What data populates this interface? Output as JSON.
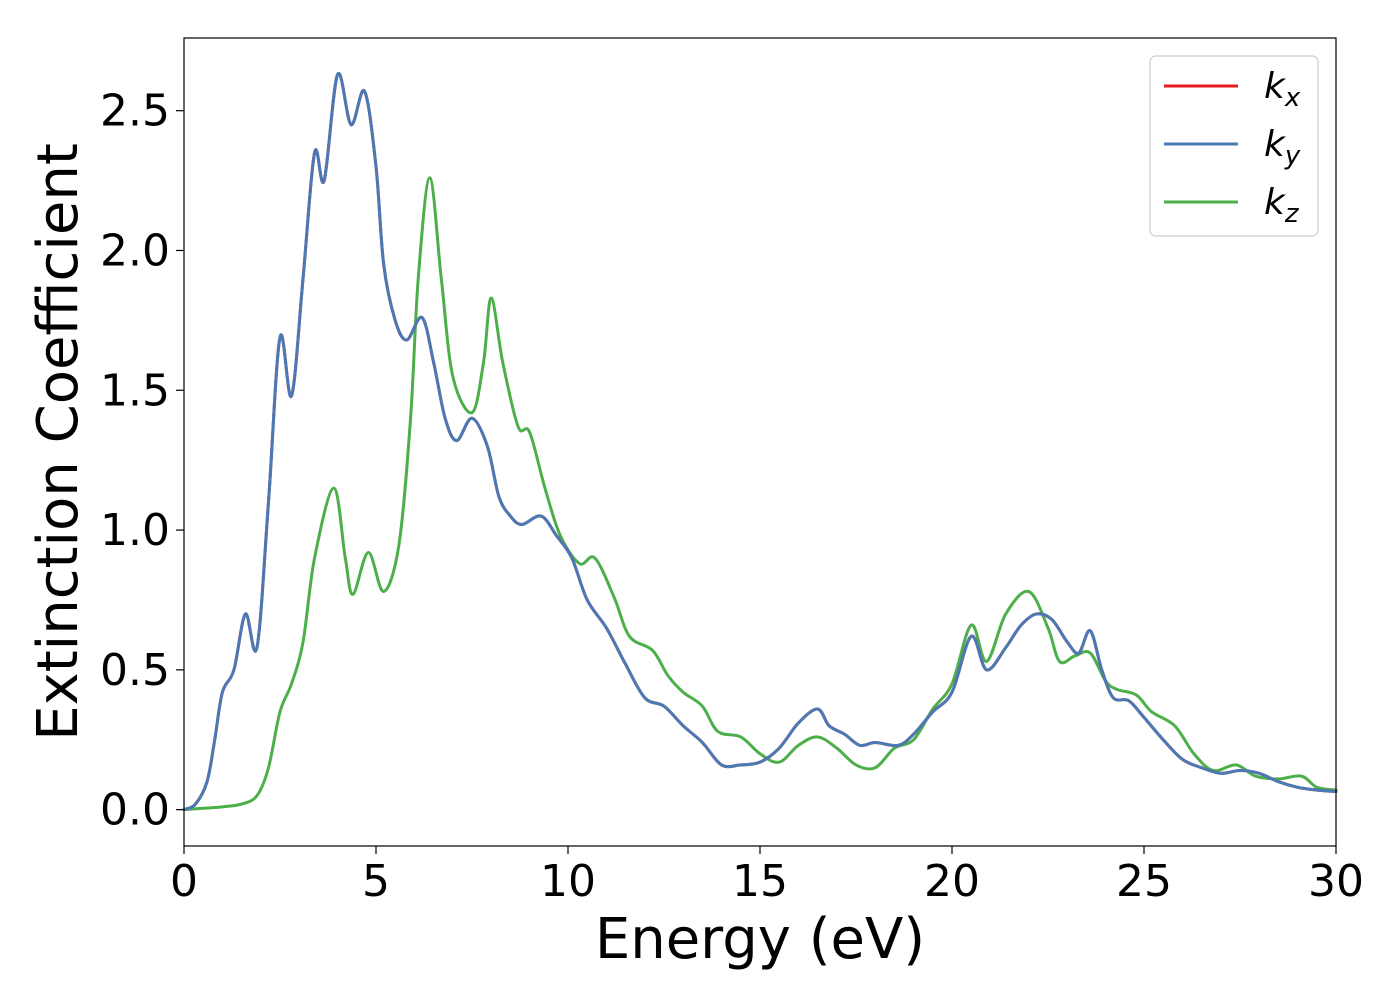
{
  "chart_data": {
    "type": "line",
    "xlabel": "Energy (eV)",
    "ylabel": "Extinction Coefficient",
    "xlim": [
      0,
      30
    ],
    "ylim": [
      -0.13,
      2.76
    ],
    "xticks": [
      0,
      5,
      10,
      15,
      20,
      25,
      30
    ],
    "xtick_labels": [
      "0",
      "5",
      "10",
      "15",
      "20",
      "25",
      "30"
    ],
    "yticks": [
      0.0,
      0.5,
      1.0,
      1.5,
      2.0,
      2.5
    ],
    "ytick_labels": [
      "0.0",
      "0.5",
      "1.0",
      "1.5",
      "2.0",
      "2.5"
    ],
    "grid": false,
    "legend_position": "top-right",
    "series": [
      {
        "name": "k_x",
        "legend_base": "k",
        "legend_sub": "x",
        "color": "#e41a1c",
        "points": [
          [
            0,
            0
          ],
          [
            0.3,
            0.02
          ],
          [
            0.6,
            0.1
          ],
          [
            0.8,
            0.25
          ],
          [
            1.0,
            0.42
          ],
          [
            1.3,
            0.5
          ],
          [
            1.6,
            0.7
          ],
          [
            1.9,
            0.58
          ],
          [
            2.2,
            1.1
          ],
          [
            2.5,
            1.69
          ],
          [
            2.8,
            1.48
          ],
          [
            3.1,
            1.9
          ],
          [
            3.4,
            2.35
          ],
          [
            3.65,
            2.25
          ],
          [
            4.0,
            2.63
          ],
          [
            4.35,
            2.45
          ],
          [
            4.7,
            2.57
          ],
          [
            5.0,
            2.3
          ],
          [
            5.2,
            1.95
          ],
          [
            5.5,
            1.75
          ],
          [
            5.8,
            1.68
          ],
          [
            6.2,
            1.76
          ],
          [
            6.5,
            1.6
          ],
          [
            6.8,
            1.4
          ],
          [
            7.1,
            1.32
          ],
          [
            7.5,
            1.4
          ],
          [
            7.9,
            1.3
          ],
          [
            8.2,
            1.12
          ],
          [
            8.5,
            1.05
          ],
          [
            8.8,
            1.02
          ],
          [
            9.3,
            1.05
          ],
          [
            9.7,
            0.98
          ],
          [
            10.1,
            0.9
          ],
          [
            10.5,
            0.75
          ],
          [
            11.0,
            0.65
          ],
          [
            11.5,
            0.52
          ],
          [
            12.0,
            0.4
          ],
          [
            12.5,
            0.37
          ],
          [
            13.0,
            0.3
          ],
          [
            13.5,
            0.24
          ],
          [
            14.0,
            0.16
          ],
          [
            14.5,
            0.16
          ],
          [
            15.0,
            0.17
          ],
          [
            15.5,
            0.22
          ],
          [
            16.0,
            0.31
          ],
          [
            16.5,
            0.36
          ],
          [
            16.8,
            0.3
          ],
          [
            17.2,
            0.27
          ],
          [
            17.6,
            0.23
          ],
          [
            18.0,
            0.24
          ],
          [
            18.6,
            0.23
          ],
          [
            19.0,
            0.27
          ],
          [
            19.5,
            0.35
          ],
          [
            20.0,
            0.42
          ],
          [
            20.5,
            0.62
          ],
          [
            20.9,
            0.5
          ],
          [
            21.4,
            0.58
          ],
          [
            21.8,
            0.66
          ],
          [
            22.2,
            0.7
          ],
          [
            22.6,
            0.68
          ],
          [
            23.0,
            0.6
          ],
          [
            23.3,
            0.56
          ],
          [
            23.6,
            0.64
          ],
          [
            23.9,
            0.5
          ],
          [
            24.2,
            0.4
          ],
          [
            24.6,
            0.39
          ],
          [
            25.0,
            0.33
          ],
          [
            25.5,
            0.25
          ],
          [
            26.0,
            0.18
          ],
          [
            26.5,
            0.15
          ],
          [
            27.0,
            0.13
          ],
          [
            27.5,
            0.14
          ],
          [
            28.0,
            0.13
          ],
          [
            28.5,
            0.1
          ],
          [
            29.0,
            0.08
          ],
          [
            29.5,
            0.07
          ],
          [
            30,
            0.065
          ]
        ]
      },
      {
        "name": "k_y",
        "legend_base": "k",
        "legend_sub": "y",
        "color": "#4a7ab5",
        "points": [
          [
            0,
            0
          ],
          [
            0.3,
            0.02
          ],
          [
            0.6,
            0.1
          ],
          [
            0.8,
            0.25
          ],
          [
            1.0,
            0.42
          ],
          [
            1.3,
            0.5
          ],
          [
            1.6,
            0.7
          ],
          [
            1.9,
            0.58
          ],
          [
            2.2,
            1.1
          ],
          [
            2.5,
            1.69
          ],
          [
            2.8,
            1.48
          ],
          [
            3.1,
            1.9
          ],
          [
            3.4,
            2.35
          ],
          [
            3.65,
            2.25
          ],
          [
            4.0,
            2.63
          ],
          [
            4.35,
            2.45
          ],
          [
            4.7,
            2.57
          ],
          [
            5.0,
            2.3
          ],
          [
            5.2,
            1.95
          ],
          [
            5.5,
            1.75
          ],
          [
            5.8,
            1.68
          ],
          [
            6.2,
            1.76
          ],
          [
            6.5,
            1.6
          ],
          [
            6.8,
            1.4
          ],
          [
            7.1,
            1.32
          ],
          [
            7.5,
            1.4
          ],
          [
            7.9,
            1.3
          ],
          [
            8.2,
            1.12
          ],
          [
            8.5,
            1.05
          ],
          [
            8.8,
            1.02
          ],
          [
            9.3,
            1.05
          ],
          [
            9.7,
            0.98
          ],
          [
            10.1,
            0.9
          ],
          [
            10.5,
            0.75
          ],
          [
            11.0,
            0.65
          ],
          [
            11.5,
            0.52
          ],
          [
            12.0,
            0.4
          ],
          [
            12.5,
            0.37
          ],
          [
            13.0,
            0.3
          ],
          [
            13.5,
            0.24
          ],
          [
            14.0,
            0.16
          ],
          [
            14.5,
            0.16
          ],
          [
            15.0,
            0.17
          ],
          [
            15.5,
            0.22
          ],
          [
            16.0,
            0.31
          ],
          [
            16.5,
            0.36
          ],
          [
            16.8,
            0.3
          ],
          [
            17.2,
            0.27
          ],
          [
            17.6,
            0.23
          ],
          [
            18.0,
            0.24
          ],
          [
            18.6,
            0.23
          ],
          [
            19.0,
            0.27
          ],
          [
            19.5,
            0.35
          ],
          [
            20.0,
            0.42
          ],
          [
            20.5,
            0.62
          ],
          [
            20.9,
            0.5
          ],
          [
            21.4,
            0.58
          ],
          [
            21.8,
            0.66
          ],
          [
            22.2,
            0.7
          ],
          [
            22.6,
            0.68
          ],
          [
            23.0,
            0.6
          ],
          [
            23.3,
            0.56
          ],
          [
            23.6,
            0.64
          ],
          [
            23.9,
            0.5
          ],
          [
            24.2,
            0.4
          ],
          [
            24.6,
            0.39
          ],
          [
            25.0,
            0.33
          ],
          [
            25.5,
            0.25
          ],
          [
            26.0,
            0.18
          ],
          [
            26.5,
            0.15
          ],
          [
            27.0,
            0.13
          ],
          [
            27.5,
            0.14
          ],
          [
            28.0,
            0.13
          ],
          [
            28.5,
            0.1
          ],
          [
            29.0,
            0.08
          ],
          [
            29.5,
            0.07
          ],
          [
            30,
            0.065
          ]
        ]
      },
      {
        "name": "k_z",
        "legend_base": "k",
        "legend_sub": "z",
        "color": "#4daf4a",
        "points": [
          [
            0,
            0
          ],
          [
            0.5,
            0.005
          ],
          [
            1.0,
            0.01
          ],
          [
            1.5,
            0.02
          ],
          [
            1.9,
            0.05
          ],
          [
            2.2,
            0.15
          ],
          [
            2.5,
            0.35
          ],
          [
            2.8,
            0.45
          ],
          [
            3.1,
            0.6
          ],
          [
            3.4,
            0.9
          ],
          [
            3.9,
            1.15
          ],
          [
            4.2,
            0.9
          ],
          [
            4.4,
            0.77
          ],
          [
            4.8,
            0.92
          ],
          [
            5.2,
            0.78
          ],
          [
            5.6,
            0.95
          ],
          [
            5.9,
            1.4
          ],
          [
            6.1,
            1.9
          ],
          [
            6.4,
            2.26
          ],
          [
            6.7,
            1.9
          ],
          [
            7.0,
            1.55
          ],
          [
            7.5,
            1.42
          ],
          [
            7.8,
            1.6
          ],
          [
            8.0,
            1.83
          ],
          [
            8.3,
            1.6
          ],
          [
            8.7,
            1.37
          ],
          [
            9.0,
            1.35
          ],
          [
            9.4,
            1.15
          ],
          [
            9.8,
            0.98
          ],
          [
            10.3,
            0.88
          ],
          [
            10.7,
            0.9
          ],
          [
            11.2,
            0.76
          ],
          [
            11.6,
            0.62
          ],
          [
            12.2,
            0.57
          ],
          [
            12.6,
            0.48
          ],
          [
            13.0,
            0.42
          ],
          [
            13.5,
            0.37
          ],
          [
            13.9,
            0.28
          ],
          [
            14.5,
            0.26
          ],
          [
            15.0,
            0.2
          ],
          [
            15.5,
            0.17
          ],
          [
            16.0,
            0.23
          ],
          [
            16.5,
            0.26
          ],
          [
            17.0,
            0.22
          ],
          [
            17.5,
            0.16
          ],
          [
            18.0,
            0.15
          ],
          [
            18.5,
            0.22
          ],
          [
            19.0,
            0.25
          ],
          [
            19.5,
            0.36
          ],
          [
            20.0,
            0.45
          ],
          [
            20.5,
            0.66
          ],
          [
            20.9,
            0.53
          ],
          [
            21.4,
            0.7
          ],
          [
            22.0,
            0.78
          ],
          [
            22.5,
            0.65
          ],
          [
            22.8,
            0.53
          ],
          [
            23.2,
            0.55
          ],
          [
            23.6,
            0.56
          ],
          [
            24.0,
            0.46
          ],
          [
            24.3,
            0.43
          ],
          [
            24.8,
            0.41
          ],
          [
            25.2,
            0.35
          ],
          [
            25.8,
            0.3
          ],
          [
            26.3,
            0.2
          ],
          [
            26.8,
            0.14
          ],
          [
            27.4,
            0.16
          ],
          [
            27.9,
            0.12
          ],
          [
            28.5,
            0.11
          ],
          [
            29.1,
            0.12
          ],
          [
            29.5,
            0.08
          ],
          [
            30,
            0.07
          ]
        ]
      }
    ]
  }
}
